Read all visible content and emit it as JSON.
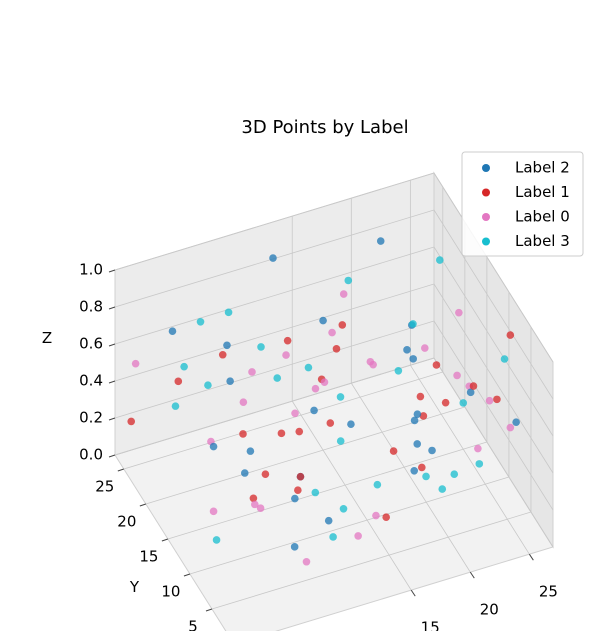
{
  "chart_data": {
    "type": "scatter3d",
    "title": "3D Points by Label",
    "ylabel": "Y",
    "zlabel": "Z",
    "xlim": [
      0,
      27
    ],
    "ylim": [
      0,
      27
    ],
    "zlim": [
      0,
      1
    ],
    "xticks": [
      15,
      20,
      25
    ],
    "yticks": [
      5,
      10,
      15,
      20,
      25
    ],
    "zticks": [
      {
        "value": 0,
        "label": "0.0"
      },
      0.2,
      0.4,
      0.6,
      0.8,
      {
        "value": 1,
        "label": "1.0"
      }
    ],
    "grid": true,
    "legend": "upper right",
    "series": [
      {
        "name": "Label 2",
        "color": "#1f77b4",
        "x": [
          3,
          7,
          12,
          18,
          22,
          25,
          9,
          15,
          20,
          5,
          11,
          16,
          24,
          2,
          8,
          13,
          19,
          26,
          6,
          14,
          21,
          10,
          17,
          23,
          4
        ],
        "y": [
          22,
          5,
          14,
          9,
          18,
          3,
          25,
          20,
          12,
          15,
          8,
          2,
          24,
          10,
          19,
          26,
          6,
          16,
          1,
          11,
          23,
          13,
          4,
          21,
          7
        ],
        "z": [
          0.8,
          0.2,
          0.5,
          0.9,
          0.1,
          0.6,
          0.3,
          0.7,
          0.4,
          0.95,
          0.15,
          0.55,
          0.35,
          0.65,
          0.05,
          0.85,
          0.45,
          0.25,
          0.75,
          0.5,
          0.9,
          0.1,
          0.6,
          0.3,
          0.7
        ]
      },
      {
        "name": "Label 1",
        "color": "#d62728",
        "x": [
          14,
          2,
          20,
          8,
          26,
          11,
          17,
          5,
          23,
          13,
          1,
          19,
          9,
          24,
          16,
          6,
          21,
          12,
          3,
          25,
          10,
          18,
          7,
          22,
          15
        ],
        "y": [
          3,
          18,
          11,
          24,
          7,
          15,
          21,
          9,
          2,
          13,
          26,
          5,
          17,
          10,
          23,
          1,
          14,
          20,
          6,
          19,
          12,
          25,
          8,
          16,
          4
        ],
        "z": [
          0.3,
          0.7,
          0.15,
          0.5,
          0.9,
          0.05,
          0.6,
          0.35,
          0.8,
          0.45,
          0.2,
          0.95,
          0.1,
          0.55,
          0.25,
          0.75,
          0.4,
          0.65,
          0.85,
          0.1,
          0.5,
          0.3,
          0.7,
          0.2,
          0.6
        ]
      },
      {
        "name": "Label 0",
        "color": "#e377c2",
        "x": [
          6,
          19,
          12,
          25,
          1,
          15,
          22,
          9,
          17,
          4,
          27,
          11,
          20,
          7,
          14,
          24,
          3,
          18,
          10,
          26,
          13,
          21,
          8,
          16,
          2
        ],
        "y": [
          12,
          20,
          4,
          16,
          25,
          8,
          1,
          22,
          14,
          6,
          19,
          11,
          3,
          24,
          17,
          9,
          2,
          26,
          15,
          7,
          21,
          13,
          5,
          18,
          10
        ],
        "z": [
          0.9,
          0.4,
          0.2,
          0.7,
          0.55,
          0.1,
          0.85,
          0.3,
          0.65,
          0.45,
          0.15,
          0.75,
          0.95,
          0.05,
          0.5,
          0.25,
          0.6,
          0.35,
          0.8,
          0.4,
          0.2,
          0.7,
          0.1,
          0.9,
          0.3
        ]
      },
      {
        "name": "Label 3",
        "color": "#17becf",
        "x": [
          10,
          23,
          5,
          18,
          13,
          26,
          1,
          16,
          8,
          21,
          12,
          3,
          19,
          25,
          7,
          14,
          22,
          9,
          17,
          4,
          27,
          11,
          20,
          6,
          15
        ],
        "y": [
          17,
          6,
          21,
          1,
          10,
          23,
          14,
          26,
          3,
          19,
          8,
          12,
          25,
          15,
          20,
          5,
          9,
          18,
          2,
          24,
          11,
          7,
          13,
          22,
          16
        ],
        "z": [
          0.6,
          0.3,
          0.85,
          0.45,
          0.1,
          0.7,
          0.95,
          0.2,
          0.55,
          0.35,
          0.8,
          0.05,
          0.65,
          0.25,
          0.9,
          0.4,
          0.15,
          0.75,
          0.5,
          0.3,
          0.6,
          0.1,
          0.85,
          0.45,
          0.2
        ]
      }
    ]
  }
}
